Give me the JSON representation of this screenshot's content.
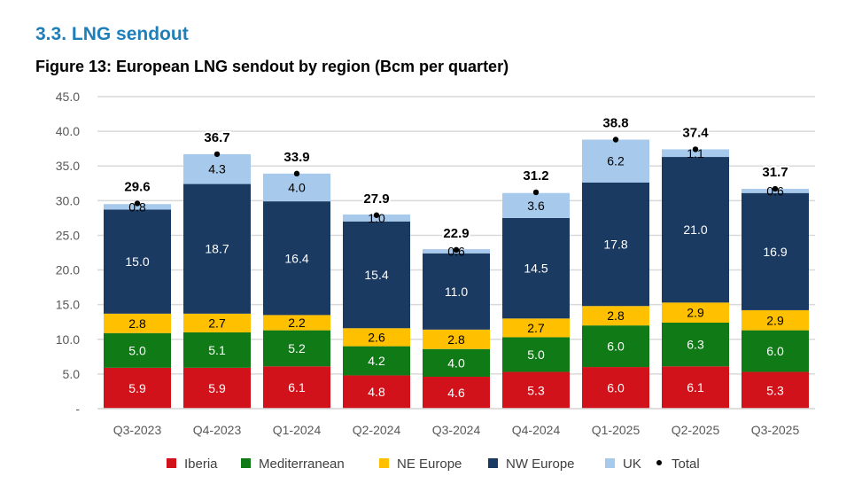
{
  "section_title": "3.3. LNG sendout",
  "figure_title": "Figure 13: European LNG sendout by region (Bcm per quarter)",
  "chart_data": {
    "type": "bar",
    "stacked": true,
    "categories": [
      "Q3-2023",
      "Q4-2023",
      "Q1-2024",
      "Q2-2024",
      "Q3-2024",
      "Q4-2024",
      "Q1-2025",
      "Q2-2025",
      "Q3-2025"
    ],
    "series": [
      {
        "name": "Iberia",
        "color": "#d2121b",
        "label_color": "#ffffff",
        "values": [
          5.9,
          5.9,
          6.1,
          4.8,
          4.6,
          5.3,
          6.0,
          6.1,
          5.3
        ]
      },
      {
        "name": "Mediterranean",
        "color": "#0f7a16",
        "label_color": "#ffffff",
        "values": [
          5.0,
          5.1,
          5.2,
          4.2,
          4.0,
          5.0,
          6.0,
          6.3,
          6.0
        ]
      },
      {
        "name": "NE Europe",
        "color": "#ffc000",
        "label_color": "#000000",
        "values": [
          2.8,
          2.7,
          2.2,
          2.6,
          2.8,
          2.7,
          2.8,
          2.9,
          2.9
        ]
      },
      {
        "name": "NW Europe",
        "color": "#1b3a62",
        "label_color": "#ffffff",
        "values": [
          15.0,
          18.7,
          16.4,
          15.4,
          11.0,
          14.5,
          17.8,
          21.0,
          16.9
        ]
      },
      {
        "name": "UK",
        "color": "#a7c9eb",
        "label_color": "#000000",
        "values": [
          0.8,
          4.3,
          4.0,
          1.0,
          0.6,
          3.6,
          6.2,
          1.1,
          0.6
        ]
      }
    ],
    "total": {
      "name": "Total",
      "values": [
        29.6,
        36.7,
        33.9,
        27.9,
        22.9,
        31.2,
        38.8,
        37.4,
        31.7
      ]
    },
    "y_ticks": [
      "-",
      "5.0",
      "10.0",
      "15.0",
      "20.0",
      "25.0",
      "30.0",
      "35.0",
      "40.0",
      "45.0"
    ],
    "ylim": [
      0,
      45
    ],
    "grid": true,
    "legend": "bottom"
  }
}
